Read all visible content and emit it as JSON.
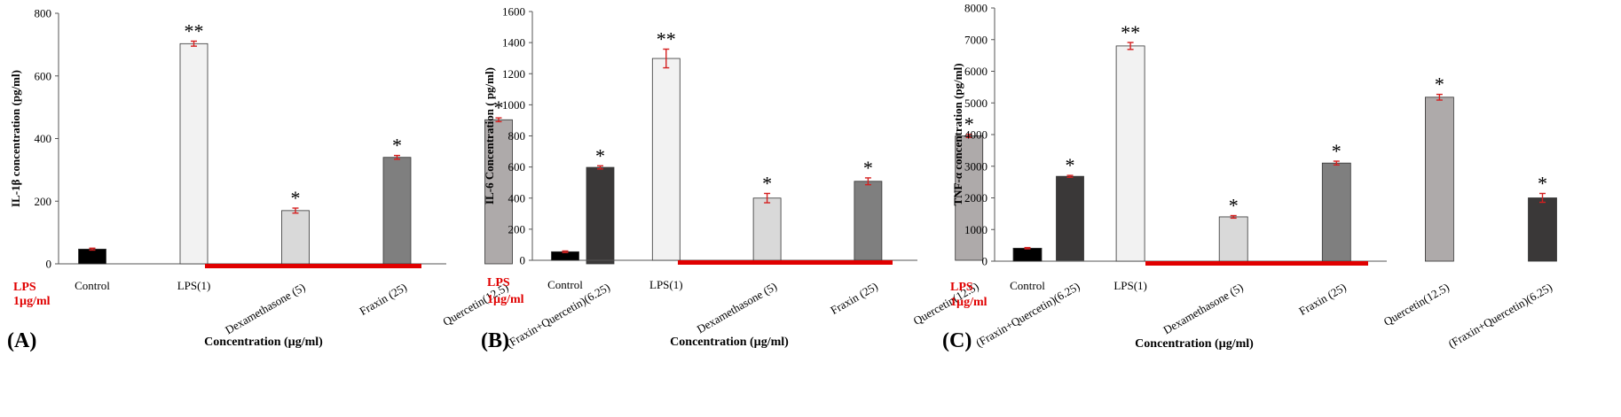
{
  "lps_label": [
    "LPS",
    "1µg/ml"
  ],
  "colors": {
    "lps_bar": "#e00000",
    "error_bar": "#d42020",
    "bars": [
      "#000000",
      "#f2f2f2",
      "#d9d9d9",
      "#7f7f7f",
      "#aeaaaa",
      "#3a3838"
    ]
  },
  "chart_data": [
    {
      "type": "bar",
      "panel_label": "(A)",
      "ylabel": "IL-1β concentration (pg/ml)",
      "xlabel": "Concentration (µg/ml)",
      "categories": [
        "Control",
        "LPS(1)",
        "Dexamethasone (5)",
        "Fraxin (25)",
        "Quercetin(12.5)",
        "(Fraxin+Quercetin)(6.25)"
      ],
      "values": [
        47,
        703,
        170,
        340,
        460,
        308
      ],
      "errors": [
        3,
        8,
        8,
        6,
        6,
        5
      ],
      "annotations": [
        "",
        "**",
        "*",
        "*",
        "*",
        "*"
      ],
      "ylim": [
        0,
        800
      ],
      "yticks": [
        0,
        200,
        400,
        600,
        800
      ],
      "grid": false,
      "legend": "none"
    },
    {
      "type": "bar",
      "panel_label": "(B)",
      "ylabel": "IL-6 Concentration ( pg/ml)",
      "xlabel": "Concentration (µg/ml)",
      "categories": [
        "Control",
        "LPS(1)",
        "Dexamethasone (5)",
        "Fraxin (25)",
        "Quercetin(12.5)",
        "(Fraxin+Quercetin)(6.25)"
      ],
      "values": [
        55,
        1298,
        400,
        508,
        800,
        540
      ],
      "errors": [
        5,
        60,
        30,
        22,
        10,
        6
      ],
      "annotations": [
        "",
        "**",
        "*",
        "*",
        "*",
        "*"
      ],
      "ylim": [
        0,
        1600
      ],
      "yticks": [
        0,
        200,
        400,
        600,
        800,
        1000,
        1200,
        1400,
        1600
      ],
      "grid": false,
      "legend": "none"
    },
    {
      "type": "bar",
      "panel_label": "(C)",
      "ylabel": "TNF-α concentration (pg/ml)",
      "xlabel": "Concentration (µg/ml)",
      "categories": [
        "Control",
        "LPS(1)",
        "Dexamethasone (5)",
        "Fraxin (25)",
        "Quercetin(12.5)",
        "(Fraxin+Quercetin)(6.25)"
      ],
      "values": [
        410,
        6800,
        1400,
        3100,
        5180,
        2000
      ],
      "errors": [
        20,
        110,
        40,
        60,
        90,
        140
      ],
      "annotations": [
        "",
        "**",
        "*",
        "*",
        "*",
        "*"
      ],
      "ylim": [
        0,
        8000
      ],
      "yticks": [
        0,
        1000,
        2000,
        3000,
        4000,
        5000,
        6000,
        7000,
        8000
      ],
      "grid": false,
      "legend": "none"
    }
  ]
}
